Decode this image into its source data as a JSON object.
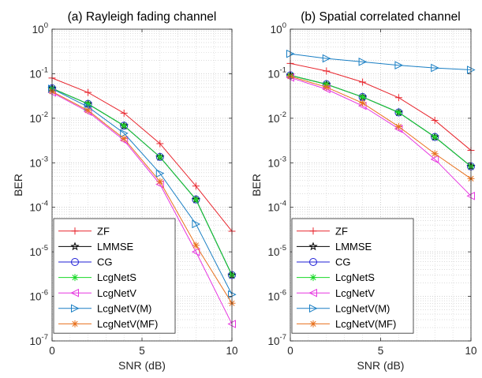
{
  "chart_data": [
    {
      "type": "line",
      "title": "(a) Rayleigh fading channel",
      "xlabel": "SNR (dB)",
      "ylabel": "BER",
      "yscale": "log",
      "xlim": [
        0,
        10
      ],
      "ylim": [
        1e-07,
        1
      ],
      "xticks": [
        "0",
        "5",
        "10"
      ],
      "yticks": [
        {
          "base": "10",
          "exp": "0"
        },
        {
          "base": "10",
          "exp": "-1"
        },
        {
          "base": "10",
          "exp": "-2"
        },
        {
          "base": "10",
          "exp": "-3"
        },
        {
          "base": "10",
          "exp": "-4"
        },
        {
          "base": "10",
          "exp": "-5"
        },
        {
          "base": "10",
          "exp": "-6"
        },
        {
          "base": "10",
          "exp": "-7"
        }
      ],
      "grid": true,
      "legend_position": "bottom-left",
      "x": [
        0,
        2,
        4,
        6,
        8,
        10
      ],
      "series": [
        {
          "name": "ZF",
          "marker": "plus",
          "color": "#e8262e",
          "values": [
            0.08,
            0.038,
            0.013,
            0.0027,
            0.0003,
            2.9e-05
          ]
        },
        {
          "name": "LMMSE",
          "marker": "star",
          "color": "#000000",
          "values": [
            0.047,
            0.021,
            0.0068,
            0.00135,
            0.00015,
            3e-06
          ]
        },
        {
          "name": "CG",
          "marker": "circle",
          "color": "#1f1fd6",
          "values": [
            0.047,
            0.021,
            0.0068,
            0.00135,
            0.00015,
            3e-06
          ]
        },
        {
          "name": "LcgNetS",
          "marker": "asterisk",
          "color": "#17d926",
          "values": [
            0.047,
            0.021,
            0.0068,
            0.00135,
            0.00015,
            3e-06
          ]
        },
        {
          "name": "LcgNetV",
          "marker": "triangle-left",
          "color": "#e636e0",
          "values": [
            0.038,
            0.014,
            0.0032,
            0.00033,
            1e-05,
            2.4e-07
          ]
        },
        {
          "name": "LcgNetV(M)",
          "marker": "triangle-right",
          "color": "#1a7fc4",
          "values": [
            0.046,
            0.018,
            0.0046,
            0.00058,
            4.2e-05,
            1.1e-06
          ]
        },
        {
          "name": "LcgNetV(MF)",
          "marker": "asterisk",
          "color": "#e8711d",
          "values": [
            0.04,
            0.015,
            0.0035,
            0.00038,
            1.4e-05,
            7e-07
          ]
        }
      ]
    },
    {
      "type": "line",
      "title": "(b) Spatial correlated channel",
      "xlabel": "SNR (dB)",
      "ylabel": "BER",
      "yscale": "log",
      "xlim": [
        0,
        10
      ],
      "ylim": [
        1e-07,
        1
      ],
      "xticks": [
        "0",
        "5",
        "10"
      ],
      "yticks": [
        {
          "base": "10",
          "exp": "0"
        },
        {
          "base": "10",
          "exp": "-1"
        },
        {
          "base": "10",
          "exp": "-2"
        },
        {
          "base": "10",
          "exp": "-3"
        },
        {
          "base": "10",
          "exp": "-4"
        },
        {
          "base": "10",
          "exp": "-5"
        },
        {
          "base": "10",
          "exp": "-6"
        },
        {
          "base": "10",
          "exp": "-7"
        }
      ],
      "grid": true,
      "legend_position": "bottom-left",
      "x": [
        0,
        2,
        4,
        6,
        8,
        10
      ],
      "series": [
        {
          "name": "ZF",
          "marker": "plus",
          "color": "#e8262e",
          "values": [
            0.17,
            0.115,
            0.065,
            0.029,
            0.009,
            0.0019
          ]
        },
        {
          "name": "LMMSE",
          "marker": "star",
          "color": "#000000",
          "values": [
            0.092,
            0.058,
            0.03,
            0.0135,
            0.0038,
            0.00083
          ]
        },
        {
          "name": "CG",
          "marker": "circle",
          "color": "#1f1fd6",
          "values": [
            0.092,
            0.058,
            0.03,
            0.0135,
            0.0038,
            0.00083
          ]
        },
        {
          "name": "LcgNetS",
          "marker": "asterisk",
          "color": "#17d926",
          "values": [
            0.092,
            0.058,
            0.03,
            0.0135,
            0.0038,
            0.00083
          ]
        },
        {
          "name": "LcgNetV",
          "marker": "triangle-left",
          "color": "#e636e0",
          "values": [
            0.082,
            0.045,
            0.019,
            0.0058,
            0.0012,
            0.00018
          ]
        },
        {
          "name": "LcgNetV(M)",
          "marker": "triangle-right",
          "color": "#1a7fc4",
          "values": [
            0.28,
            0.22,
            0.185,
            0.155,
            0.135,
            0.122
          ]
        },
        {
          "name": "LcgNetV(MF)",
          "marker": "asterisk",
          "color": "#e8711d",
          "values": [
            0.087,
            0.05,
            0.022,
            0.0065,
            0.0016,
            0.00044
          ]
        }
      ]
    }
  ]
}
